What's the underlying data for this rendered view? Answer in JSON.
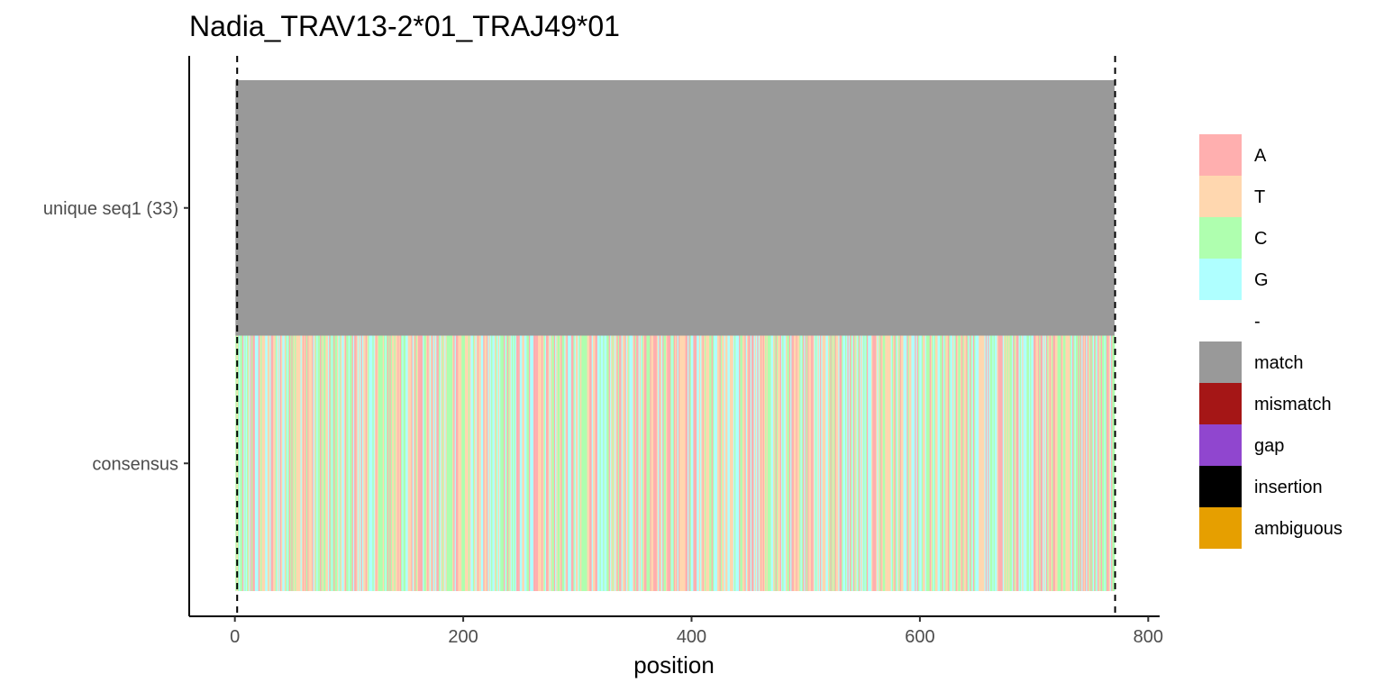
{
  "chart_data": {
    "type": "heatmap",
    "title": "Nadia_TRAV13-2*01_TRAJ49*01",
    "xlabel": "position",
    "ylabel": "",
    "xlim": [
      -40,
      810
    ],
    "x_ticks": [
      0,
      200,
      400,
      600,
      800
    ],
    "sequence_length": 770,
    "rows": [
      {
        "label": "unique seq1 (33)",
        "fill": "match"
      },
      {
        "label": "consensus",
        "fill": "nucleotides"
      }
    ],
    "reference_lines": [
      2,
      771
    ],
    "grid": false,
    "legend_position": "right",
    "legend": [
      {
        "label": "A",
        "color": "#FFAFAF"
      },
      {
        "label": "T",
        "color": "#FFD7AF"
      },
      {
        "label": "C",
        "color": "#AFFFAF"
      },
      {
        "label": "G",
        "color": "#AFFFFF"
      },
      {
        "label": "-",
        "color": "#FFFFFF"
      },
      {
        "label": "match",
        "color": "#999999"
      },
      {
        "label": "mismatch",
        "color": "#A51616"
      },
      {
        "label": "gap",
        "color": "#9046CF"
      },
      {
        "label": "insertion",
        "color": "#000000"
      },
      {
        "label": "ambiguous",
        "color": "#E69F00"
      }
    ]
  }
}
